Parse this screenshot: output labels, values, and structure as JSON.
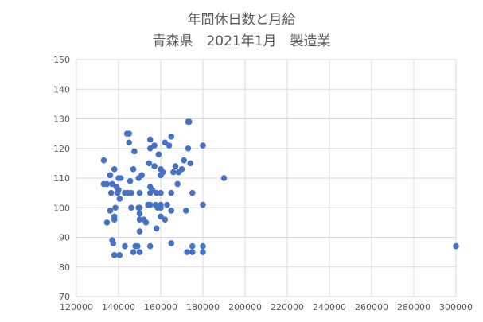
{
  "chart_data": {
    "type": "scatter",
    "title": "年間休日数と月給",
    "subtitle": "青森県　2021年1月　製造業",
    "xlabel": "",
    "ylabel": "",
    "xlim": [
      120000,
      300000
    ],
    "ylim": [
      70,
      150
    ],
    "x_ticks": [
      120000,
      140000,
      160000,
      180000,
      200000,
      220000,
      240000,
      260000,
      280000,
      300000
    ],
    "y_ticks": [
      70,
      80,
      90,
      100,
      110,
      120,
      130,
      140,
      150
    ],
    "grid": true,
    "legend": "none",
    "marker_color": "#4472c4",
    "points": [
      [
        133000,
        116
      ],
      [
        133000,
        108
      ],
      [
        134500,
        108
      ],
      [
        134500,
        95
      ],
      [
        136000,
        99
      ],
      [
        136000,
        111
      ],
      [
        137000,
        108
      ],
      [
        136500,
        105
      ],
      [
        137000,
        89
      ],
      [
        137500,
        88
      ],
      [
        138000,
        96
      ],
      [
        138000,
        97
      ],
      [
        138000,
        113
      ],
      [
        138500,
        100
      ],
      [
        138000,
        84
      ],
      [
        139000,
        107
      ],
      [
        139500,
        105
      ],
      [
        140000,
        106
      ],
      [
        140000,
        110
      ],
      [
        140500,
        103
      ],
      [
        141000,
        110
      ],
      [
        140500,
        84
      ],
      [
        143000,
        105
      ],
      [
        143000,
        87
      ],
      [
        144000,
        125
      ],
      [
        144500,
        105
      ],
      [
        145000,
        125
      ],
      [
        145000,
        122
      ],
      [
        145500,
        109
      ],
      [
        146000,
        105
      ],
      [
        146000,
        100
      ],
      [
        147000,
        113
      ],
      [
        147000,
        85
      ],
      [
        147500,
        119
      ],
      [
        148000,
        87
      ],
      [
        149000,
        87
      ],
      [
        149500,
        110
      ],
      [
        150000,
        100
      ],
      [
        150000,
        105
      ],
      [
        150000,
        98
      ],
      [
        150000,
        96
      ],
      [
        150000,
        92
      ],
      [
        150000,
        85
      ],
      [
        149500,
        100
      ],
      [
        151000,
        111
      ],
      [
        152000,
        96
      ],
      [
        153000,
        95
      ],
      [
        154000,
        101
      ],
      [
        154500,
        115
      ],
      [
        155000,
        123
      ],
      [
        155000,
        120
      ],
      [
        155000,
        107
      ],
      [
        155000,
        105
      ],
      [
        155000,
        101
      ],
      [
        155000,
        87
      ],
      [
        156000,
        106
      ],
      [
        157000,
        121
      ],
      [
        157000,
        114
      ],
      [
        157500,
        101
      ],
      [
        158000,
        93
      ],
      [
        158000,
        105
      ],
      [
        158500,
        100
      ],
      [
        159000,
        118
      ],
      [
        160000,
        113
      ],
      [
        160000,
        111
      ],
      [
        160000,
        105
      ],
      [
        160000,
        101
      ],
      [
        160000,
        97
      ],
      [
        160000,
        100
      ],
      [
        161000,
        112
      ],
      [
        162000,
        122
      ],
      [
        162000,
        96
      ],
      [
        163000,
        101
      ],
      [
        164000,
        121
      ],
      [
        165000,
        124
      ],
      [
        165000,
        105
      ],
      [
        165000,
        99
      ],
      [
        165000,
        88
      ],
      [
        166000,
        112
      ],
      [
        167000,
        114
      ],
      [
        168000,
        108
      ],
      [
        168500,
        112
      ],
      [
        170000,
        113
      ],
      [
        171000,
        116
      ],
      [
        172000,
        99
      ],
      [
        172500,
        85
      ],
      [
        173000,
        129
      ],
      [
        173500,
        129
      ],
      [
        173000,
        120
      ],
      [
        174000,
        115
      ],
      [
        175000,
        105
      ],
      [
        175000,
        87
      ],
      [
        175000,
        85
      ],
      [
        180000,
        121
      ],
      [
        180000,
        101
      ],
      [
        180000,
        87
      ],
      [
        180000,
        85
      ],
      [
        190000,
        110
      ],
      [
        300000,
        87
      ]
    ]
  }
}
